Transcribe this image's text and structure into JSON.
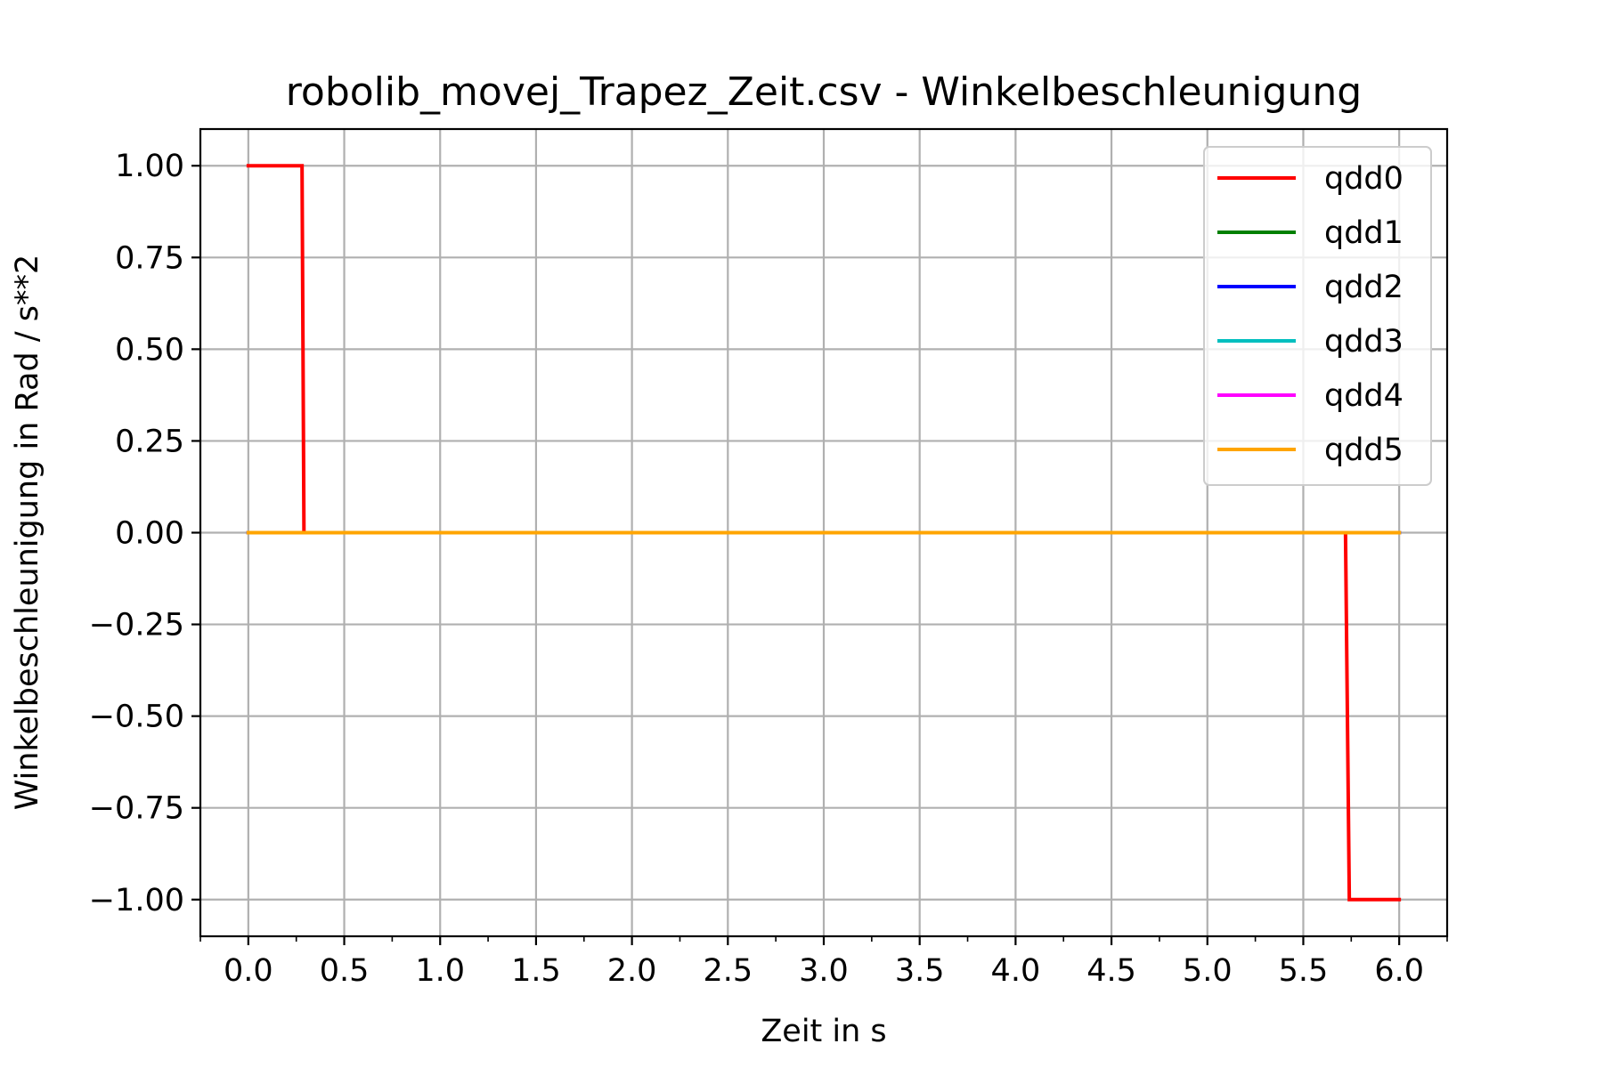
{
  "chart_data": {
    "type": "line",
    "title": "robolib_movej_Trapez_Zeit.csv - Winkelbeschleunigung",
    "xlabel": "Zeit in s",
    "ylabel": "Winkelbeschleunigung in Rad / s**2",
    "xlim": [
      -0.25,
      6.25
    ],
    "ylim": [
      -1.1,
      1.1
    ],
    "grid": true,
    "legend_position": "top-right",
    "x_ticks": [
      0.0,
      0.5,
      1.0,
      1.5,
      2.0,
      2.5,
      3.0,
      3.5,
      4.0,
      4.5,
      5.0,
      5.5,
      6.0
    ],
    "x_tick_labels": [
      "0.0",
      "0.5",
      "1.0",
      "1.5",
      "2.0",
      "2.5",
      "3.0",
      "3.5",
      "4.0",
      "4.5",
      "5.0",
      "5.5",
      "6.0"
    ],
    "x_minor_ticks": [
      -0.25,
      0.25,
      0.75,
      1.25,
      1.75,
      2.25,
      2.75,
      3.25,
      3.75,
      4.25,
      4.75,
      5.25,
      5.75,
      6.25
    ],
    "y_ticks": [
      1.0,
      0.75,
      0.5,
      0.25,
      0.0,
      -0.25,
      -0.5,
      -0.75,
      -1.0
    ],
    "y_tick_labels": [
      "1.00",
      "0.75",
      "0.50",
      "0.25",
      "0.00",
      "−0.25",
      "−0.50",
      "−0.75",
      "−1.00"
    ],
    "series": [
      {
        "name": "qdd0",
        "color": "#ff0000",
        "x": [
          0.0,
          0.28,
          0.29,
          5.72,
          5.74,
          6.0
        ],
        "y": [
          1.0,
          1.0,
          0.0,
          0.0,
          -1.0,
          -1.0
        ]
      },
      {
        "name": "qdd1",
        "color": "#008000",
        "x": [
          0.0,
          6.0
        ],
        "y": [
          0.0,
          0.0
        ]
      },
      {
        "name": "qdd2",
        "color": "#0000ff",
        "x": [
          0.0,
          6.0
        ],
        "y": [
          0.0,
          0.0
        ]
      },
      {
        "name": "qdd3",
        "color": "#00bfbf",
        "x": [
          0.0,
          6.0
        ],
        "y": [
          0.0,
          0.0
        ]
      },
      {
        "name": "qdd4",
        "color": "#ff00ff",
        "x": [
          0.0,
          6.0
        ],
        "y": [
          0.0,
          0.0
        ]
      },
      {
        "name": "qdd5",
        "color": "#ffa500",
        "x": [
          0.0,
          6.0
        ],
        "y": [
          0.0,
          0.0
        ]
      }
    ]
  }
}
